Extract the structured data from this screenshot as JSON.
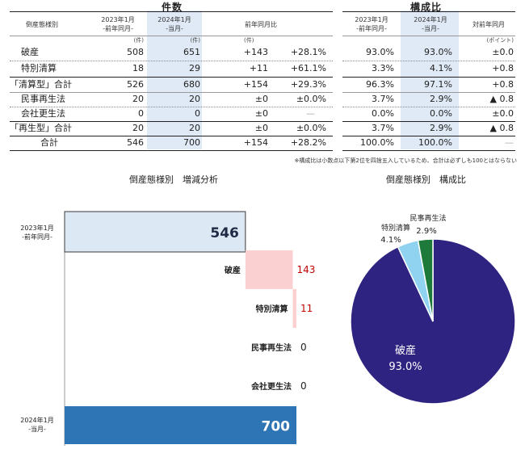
{
  "headers": {
    "count_title": "件数",
    "share_title": "構成比",
    "category": "倒産態様別",
    "prev_month": "2023年1月",
    "prev_sub": "-前年同月-",
    "cur_month": "2024年1月",
    "cur_sub": "-当月-",
    "yoy": "前年同月比",
    "yoy_share": "対前年同月",
    "unit_count": "(件)",
    "unit_point": "(ポイント)",
    "dash": "—"
  },
  "rows": [
    {
      "name": "破産",
      "prev": "508",
      "cur": "651",
      "diff": "+143",
      "pct": "+28.1%",
      "sprev": "93.0%",
      "scur": "93.0%",
      "sdiff": "±0.0"
    },
    {
      "name": "特別清算",
      "prev": "18",
      "cur": "29",
      "diff": "+11",
      "pct": "+61.1%",
      "sprev": "3.3%",
      "scur": "4.1%",
      "sdiff": "+0.8"
    },
    {
      "name": "「清算型」合計",
      "prev": "526",
      "cur": "680",
      "diff": "+154",
      "pct": "+29.3%",
      "sprev": "96.3%",
      "scur": "97.1%",
      "sdiff": "+0.8"
    },
    {
      "name": "民事再生法",
      "prev": "20",
      "cur": "20",
      "diff": "±0",
      "pct": "±0.0%",
      "sprev": "3.7%",
      "scur": "2.9%",
      "sdiff": "▲ 0.8"
    },
    {
      "name": "会社更生法",
      "prev": "0",
      "cur": "0",
      "diff": "±0",
      "pct": "—",
      "sprev": "0.0%",
      "scur": "0.0%",
      "sdiff": "±0.0"
    },
    {
      "name": "「再生型」合計",
      "prev": "20",
      "cur": "20",
      "diff": "±0",
      "pct": "±0.0%",
      "sprev": "3.7%",
      "scur": "2.9%",
      "sdiff": "▲ 0.8"
    },
    {
      "name": "合計",
      "prev": "546",
      "cur": "700",
      "diff": "+154",
      "pct": "+28.2%",
      "sprev": "100.0%",
      "scur": "100.0%",
      "sdiff": "—"
    }
  ],
  "footnote": "※構成比は小数点以下第2位を四捨五入しているため、合計は必ずしも100とはならない",
  "colors": {
    "highlight": "#dfeaf6",
    "waterfall_start": "#dce8f4",
    "waterfall_increase": "#fbd0d0",
    "waterfall_end": "#2e75b6",
    "increase_text": "#c00000",
    "pie_bankruptcy": "#2e2380",
    "pie_special": "#8fd3f0",
    "pie_civil": "#1e7a3a"
  },
  "chart_data": [
    {
      "type": "waterfall",
      "title": "倒産態様別　増減分析",
      "start": {
        "label_line1": "2023年1月",
        "label_line2": "-前年同月-",
        "value": 546,
        "value_text": "546"
      },
      "steps": [
        {
          "label": "破産",
          "value": 143,
          "value_text": "143"
        },
        {
          "label": "特別清算",
          "value": 11,
          "value_text": "11"
        },
        {
          "label": "民事再生法",
          "value": 0,
          "value_text": "0"
        },
        {
          "label": "会社更生法",
          "value": 0,
          "value_text": "0"
        }
      ],
      "end": {
        "label_line1": "2024年1月",
        "label_line2": "-当月-",
        "value": 700,
        "value_text": "700"
      }
    },
    {
      "type": "pie",
      "title": "倒産態様別　構成比",
      "slices": [
        {
          "label": "破産",
          "value": 93.0,
          "value_text": "93.0%"
        },
        {
          "label": "特別清算",
          "value": 4.1,
          "value_text": "4.1%"
        },
        {
          "label": "民事再生法",
          "value": 2.9,
          "value_text": "2.9%"
        }
      ]
    }
  ]
}
